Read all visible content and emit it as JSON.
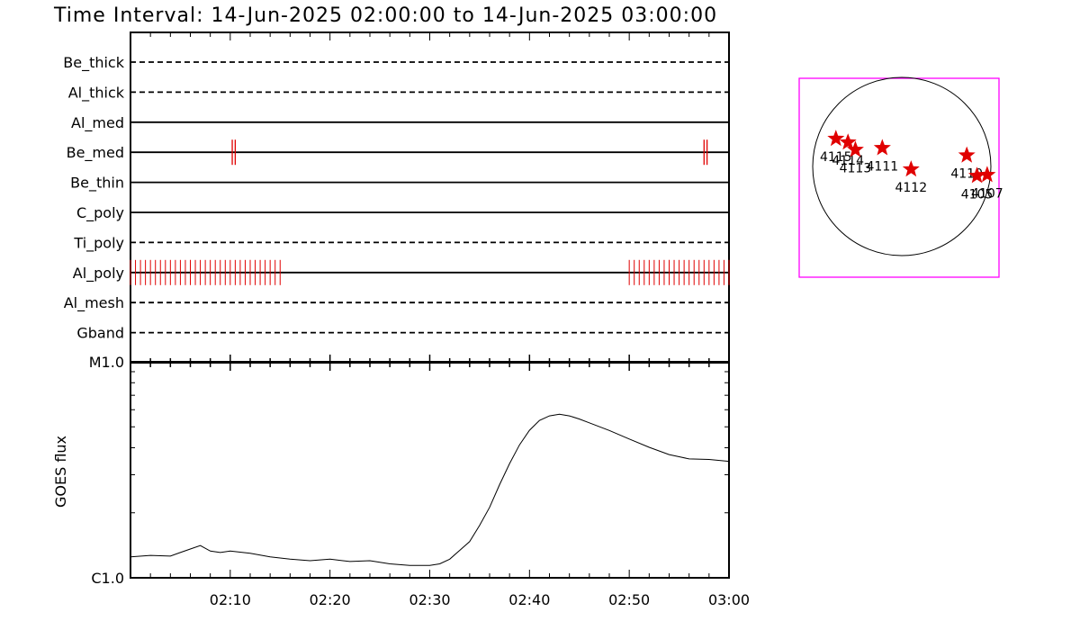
{
  "title": "Time Interval: 14-Jun-2025 02:00:00 to 14-Jun-2025 03:00:00",
  "colors": {
    "foreground": "#000000",
    "accent": "#e00000",
    "frame": "#ff00ff",
    "background": "#ffffff"
  },
  "chart_data": [
    {
      "type": "line",
      "title": "",
      "xlabel": "",
      "ylabel": "",
      "x_unit": "minutes",
      "x_range": [
        "02:00",
        "03:00"
      ],
      "x_ticks": [
        "02:10",
        "02:20",
        "02:30",
        "02:40",
        "02:50",
        "03:00"
      ],
      "categories": [
        "Be_thick",
        "Al_thick",
        "Al_med",
        "Be_med",
        "Be_thin",
        "C_poly",
        "Ti_poly",
        "Al_poly",
        "Al_mesh",
        "Gband"
      ],
      "line_styles": [
        "dashed",
        "dashed",
        "solid",
        "solid",
        "solid",
        "solid",
        "dashed",
        "solid",
        "dashed",
        "dashed"
      ],
      "series": [
        {
          "name": "Be_med",
          "marker_times": [
            "02:10.2",
            "02:10.5",
            "02:57.5",
            "02:57.8"
          ]
        },
        {
          "name": "Al_poly",
          "marker_ranges": [
            [
              "02:00",
              "02:15"
            ],
            [
              "02:50",
              "03:00"
            ]
          ],
          "marker_step_min": 0.5
        }
      ]
    },
    {
      "type": "line",
      "title": "",
      "xlabel": "",
      "ylabel": "GOES flux",
      "log_scale": true,
      "y_ticks": [
        "C1.0",
        "M1.0"
      ],
      "ylim": [
        1e-06,
        1e-05
      ],
      "x": [
        "02:00",
        "02:02",
        "02:04",
        "02:05",
        "02:06",
        "02:07",
        "02:08",
        "02:09",
        "02:10",
        "02:12",
        "02:14",
        "02:16",
        "02:18",
        "02:20",
        "02:22",
        "02:24",
        "02:26",
        "02:28",
        "02:30",
        "02:31",
        "02:32",
        "02:33",
        "02:34",
        "02:35",
        "02:36",
        "02:37",
        "02:38",
        "02:39",
        "02:40",
        "02:41",
        "02:42",
        "02:43",
        "02:44",
        "02:45",
        "02:46",
        "02:48",
        "02:50",
        "02:52",
        "02:54",
        "02:56",
        "02:58",
        "03:00"
      ],
      "series": [
        {
          "name": "",
          "values": [
            1.25e-06,
            1.27e-06,
            1.26e-06,
            1.31e-06,
            1.36e-06,
            1.41e-06,
            1.33e-06,
            1.31e-06,
            1.33e-06,
            1.3e-06,
            1.25e-06,
            1.22e-06,
            1.2e-06,
            1.22e-06,
            1.19e-06,
            1.2e-06,
            1.16e-06,
            1.14e-06,
            1.14e-06,
            1.16e-06,
            1.22e-06,
            1.34e-06,
            1.47e-06,
            1.75e-06,
            2.12e-06,
            2.7e-06,
            3.38e-06,
            4.13e-06,
            4.82e-06,
            5.35e-06,
            5.62e-06,
            5.72e-06,
            5.62e-06,
            5.43e-06,
            5.22e-06,
            4.81e-06,
            4.39e-06,
            4.02e-06,
            3.72e-06,
            3.55e-06,
            3.53e-06,
            3.46e-06
          ]
        }
      ]
    },
    {
      "type": "scatter",
      "title": "",
      "xlabel": "",
      "ylabel": "",
      "points": [
        {
          "label": "4115",
          "x": -710,
          "y": 300
        },
        {
          "label": "4114",
          "x": -580,
          "y": 260
        },
        {
          "label": "4113",
          "x": -500,
          "y": 180
        },
        {
          "label": "4111",
          "x": -210,
          "y": 200
        },
        {
          "label": "4112",
          "x": 100,
          "y": -30
        },
        {
          "label": "4110",
          "x": 700,
          "y": 120
        },
        {
          "label": "4105",
          "x": 810,
          "y": -100
        },
        {
          "label": "4107",
          "x": 920,
          "y": -90
        }
      ],
      "xlim": [
        -1100,
        1100
      ],
      "ylim": [
        -1100,
        1100
      ]
    }
  ]
}
